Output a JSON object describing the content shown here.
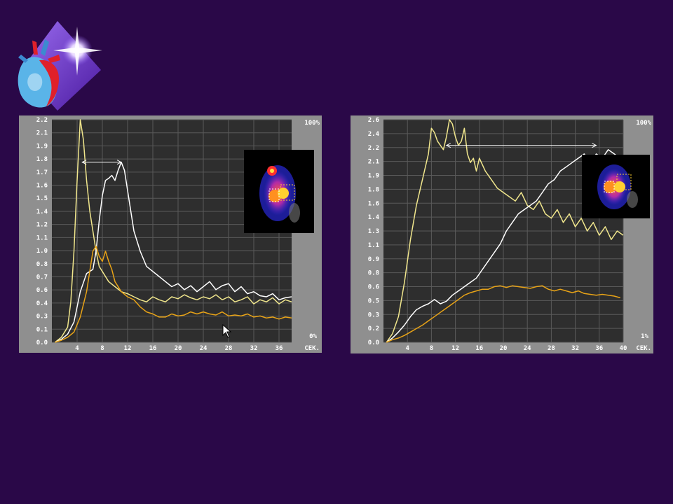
{
  "chart_data": [
    {
      "type": "line",
      "x_unit_label": "СЕК.",
      "right_top_label": "100%",
      "right_bottom_label": "0%",
      "top_label": "",
      "xlim": [
        0,
        38
      ],
      "ylim": [
        0,
        2.2
      ],
      "x_ticks": [
        "4",
        "8",
        "12",
        "16",
        "20",
        "24",
        "28",
        "32",
        "36"
      ],
      "y_ticks": [
        "0.0",
        "0.1",
        "0.2",
        "0.3",
        "0.4",
        "0.5",
        "0.6",
        "0.7",
        "0.8",
        "0.9",
        "1.0",
        "1.1",
        "1.2",
        "1.3",
        "1.4",
        "1.5",
        "1.6",
        "1.7",
        "1.8",
        "1.9",
        "2.0",
        "2.1",
        "2.2"
      ],
      "y_tick_labels_shown": [
        "0.0",
        "0.1",
        "0.3",
        "0.4",
        "0.6",
        "0.7",
        "0.8",
        "1.0",
        "1.1",
        "1.2",
        "1.4",
        "1.5",
        "1.6",
        "1.7",
        "1.8",
        "1.9",
        "2.1",
        "2.2"
      ],
      "grid": true,
      "series": [
        {
          "color": "#f0e68c",
          "x": [
            0.5,
            1.5,
            2.5,
            3,
            3.5,
            4,
            4.5,
            5,
            5.5,
            6,
            6.5,
            7,
            7.5,
            8,
            9,
            10,
            11,
            12,
            13,
            14,
            15,
            16,
            17,
            18,
            19,
            20,
            21,
            22,
            23,
            24,
            25,
            26,
            27,
            28,
            29,
            30,
            31,
            32,
            33,
            34,
            35,
            36,
            37,
            38
          ],
          "y": [
            0,
            0.05,
            0.15,
            0.4,
            0.9,
            1.6,
            2.2,
            2.0,
            1.6,
            1.3,
            1.1,
            0.9,
            0.75,
            0.7,
            0.6,
            0.55,
            0.5,
            0.48,
            0.45,
            0.42,
            0.4,
            0.45,
            0.42,
            0.4,
            0.45,
            0.43,
            0.47,
            0.44,
            0.42,
            0.45,
            0.43,
            0.47,
            0.42,
            0.45,
            0.4,
            0.42,
            0.45,
            0.38,
            0.42,
            0.4,
            0.44,
            0.38,
            0.42,
            0.4
          ]
        },
        {
          "color": "#ffffff",
          "x": [
            0.5,
            1.5,
            2.5,
            3.5,
            4.5,
            5.5,
            6.5,
            7,
            7.5,
            8,
            8.5,
            9,
            9.5,
            10,
            10.5,
            11,
            11.5,
            12,
            12.5,
            13,
            14,
            15,
            16,
            17,
            18,
            19,
            20,
            21,
            22,
            23,
            24,
            25,
            26,
            27,
            28,
            29,
            30,
            31,
            32,
            33,
            34,
            35,
            36,
            37,
            38
          ],
          "y": [
            0,
            0.03,
            0.08,
            0.2,
            0.5,
            0.68,
            0.72,
            0.9,
            1.2,
            1.45,
            1.6,
            1.62,
            1.65,
            1.6,
            1.7,
            1.78,
            1.7,
            1.5,
            1.3,
            1.1,
            0.9,
            0.75,
            0.7,
            0.65,
            0.6,
            0.55,
            0.58,
            0.52,
            0.56,
            0.5,
            0.55,
            0.6,
            0.52,
            0.56,
            0.58,
            0.5,
            0.55,
            0.48,
            0.5,
            0.46,
            0.45,
            0.48,
            0.42,
            0.44,
            0.45
          ]
        },
        {
          "color": "#e8a317",
          "x": [
            0.5,
            1.5,
            2.5,
            3.5,
            4.5,
            5.5,
            6,
            6.5,
            7,
            7.5,
            8,
            8.5,
            9,
            9.5,
            10,
            11,
            12,
            13,
            14,
            15,
            16,
            17,
            18,
            19,
            20,
            21,
            22,
            23,
            24,
            25,
            26,
            27,
            28,
            29,
            30,
            31,
            32,
            33,
            34,
            35,
            36,
            37,
            38
          ],
          "y": [
            0,
            0.02,
            0.05,
            0.1,
            0.25,
            0.5,
            0.7,
            0.9,
            0.95,
            0.85,
            0.8,
            0.9,
            0.8,
            0.72,
            0.6,
            0.5,
            0.45,
            0.42,
            0.35,
            0.3,
            0.28,
            0.25,
            0.25,
            0.28,
            0.26,
            0.27,
            0.3,
            0.28,
            0.3,
            0.28,
            0.27,
            0.3,
            0.26,
            0.27,
            0.26,
            0.28,
            0.25,
            0.26,
            0.24,
            0.25,
            0.23,
            0.25,
            0.24
          ]
        }
      ],
      "annotation_arrow": {
        "x_from": 4.8,
        "x_to": 11,
        "y": 1.78
      }
    },
    {
      "type": "line",
      "x_unit_label": "СЕК.",
      "right_top_label": "100%",
      "right_bottom_label": "1%",
      "top_label": "",
      "xlim": [
        0,
        40
      ],
      "ylim": [
        0,
        2.6
      ],
      "x_ticks": [
        "4",
        "8",
        "12",
        "16",
        "20",
        "24",
        "28",
        "32",
        "36",
        "40"
      ],
      "y_ticks": [
        "0.0",
        "0.2",
        "0.3",
        "0.5",
        "0.6",
        "0.8",
        "0.9",
        "1.1",
        "1.3",
        "1.4",
        "1.6",
        "1.7",
        "1.9",
        "2.1",
        "2.2",
        "2.4",
        "2.6"
      ],
      "y_tick_labels_shown": [
        "0.0",
        "0.2",
        "0.3",
        "0.5",
        "0.6",
        "0.8",
        "0.9",
        "1.1",
        "1.3",
        "1.4",
        "1.6",
        "1.8",
        "1.9",
        "2.1",
        "2.2",
        "2.4",
        "2.6"
      ],
      "grid": true,
      "series": [
        {
          "color": "#f0e68c",
          "x": [
            0.5,
            1.5,
            2.5,
            3.5,
            4.5,
            5.5,
            6.5,
            7.5,
            8,
            8.5,
            9,
            9.5,
            10,
            10.5,
            11,
            11.5,
            12,
            12.5,
            13,
            13.5,
            14,
            14.5,
            15,
            15.5,
            16,
            17,
            18,
            19,
            20,
            21,
            22,
            23,
            24,
            25,
            26,
            27,
            28,
            29,
            30,
            31,
            32,
            33,
            34,
            35,
            36,
            37,
            38,
            39,
            40
          ],
          "y": [
            0,
            0.1,
            0.3,
            0.7,
            1.2,
            1.6,
            1.9,
            2.2,
            2.5,
            2.45,
            2.35,
            2.3,
            2.25,
            2.4,
            2.6,
            2.55,
            2.4,
            2.3,
            2.35,
            2.5,
            2.2,
            2.1,
            2.15,
            2.0,
            2.15,
            2.0,
            1.9,
            1.8,
            1.75,
            1.7,
            1.65,
            1.75,
            1.6,
            1.55,
            1.65,
            1.5,
            1.45,
            1.55,
            1.4,
            1.5,
            1.35,
            1.45,
            1.3,
            1.4,
            1.25,
            1.35,
            1.2,
            1.3,
            1.25
          ]
        },
        {
          "color": "#ffffff",
          "x": [
            0.5,
            1.5,
            2.5,
            3.5,
            4.5,
            5.5,
            6.5,
            7.5,
            8.5,
            9.5,
            10.5,
            11.5,
            12.5,
            13.5,
            14.5,
            15.5,
            16.5,
            17.5,
            18.5,
            19.5,
            20.5,
            21.5,
            22.5,
            23.5,
            24.5,
            25.5,
            26.5,
            27.5,
            28.5,
            29.5,
            30.5,
            31.5,
            32.5,
            33.5,
            34.5,
            35.5,
            36.5,
            37.5,
            38.5,
            39.5
          ],
          "y": [
            0,
            0.05,
            0.12,
            0.2,
            0.3,
            0.38,
            0.42,
            0.45,
            0.5,
            0.45,
            0.48,
            0.55,
            0.6,
            0.65,
            0.7,
            0.75,
            0.85,
            0.95,
            1.05,
            1.15,
            1.3,
            1.4,
            1.5,
            1.55,
            1.6,
            1.65,
            1.75,
            1.85,
            1.9,
            2.0,
            2.05,
            2.1,
            2.15,
            2.2,
            2.1,
            2.2,
            2.15,
            2.25,
            2.2,
            2.15
          ]
        },
        {
          "color": "#e8a317",
          "x": [
            0.5,
            1.5,
            2.5,
            3.5,
            4.5,
            5.5,
            6.5,
            7.5,
            8.5,
            9.5,
            10.5,
            11.5,
            12.5,
            13.5,
            14.5,
            15.5,
            16.5,
            17.5,
            18.5,
            19.5,
            20.5,
            21.5,
            22.5,
            23.5,
            24.5,
            25.5,
            26.5,
            27.5,
            28.5,
            29.5,
            30.5,
            31.5,
            32.5,
            33.5,
            34.5,
            35.5,
            36.5,
            37.5,
            38.5,
            39.5
          ],
          "y": [
            0,
            0.03,
            0.05,
            0.08,
            0.12,
            0.16,
            0.2,
            0.25,
            0.3,
            0.35,
            0.4,
            0.45,
            0.5,
            0.55,
            0.58,
            0.6,
            0.62,
            0.62,
            0.65,
            0.66,
            0.64,
            0.66,
            0.65,
            0.64,
            0.63,
            0.65,
            0.66,
            0.62,
            0.6,
            0.62,
            0.6,
            0.58,
            0.6,
            0.57,
            0.56,
            0.55,
            0.56,
            0.55,
            0.54,
            0.52
          ]
        }
      ],
      "annotation_arrow": {
        "x_from": 10.5,
        "x_to": 35.5,
        "y": 2.3
      }
    }
  ]
}
